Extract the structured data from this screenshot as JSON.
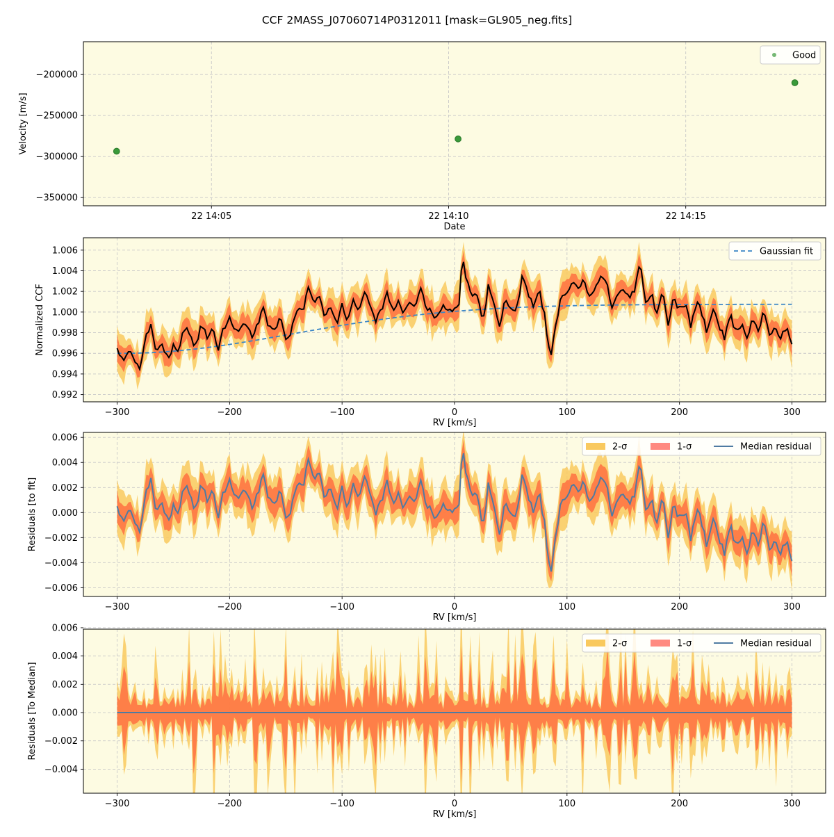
{
  "figure": {
    "title": "CCF 2MASS_J07060714P0312011 [mask=GL905_neg.fits]"
  },
  "colors": {
    "panel_bg": "#fdfbe2",
    "good_point": "#3a9a3a",
    "sigma2_fill": "#f9c95e",
    "sigma1_fill": "#ff6a3d",
    "ccf_line": "#000000",
    "gaussian_fit": "#3b86c6",
    "median_residual": "#4f7ba2"
  },
  "chart_data": [
    {
      "type": "scatter",
      "xlabel": "Date",
      "ylabel": "Velocity [m/s]",
      "x_ticks": [
        {
          "label": "22 14:05",
          "minutes": 5
        },
        {
          "label": "22 14:10",
          "minutes": 10
        },
        {
          "label": "22 14:15",
          "minutes": 15
        }
      ],
      "xlim_minutes": [
        2.3,
        17.95
      ],
      "ylim": [
        -360000,
        -160000
      ],
      "yticks": [
        -350000,
        -300000,
        -250000,
        -200000
      ],
      "ytick_labels": [
        "−350000",
        "−300000",
        "−250000",
        "−200000"
      ],
      "legend": {
        "position": "top-right",
        "entries": [
          "Good"
        ]
      },
      "series": [
        {
          "name": "Good",
          "points": [
            {
              "date": "22 14:03.0",
              "minutes": 3.0,
              "velocity": -293500
            },
            {
              "date": "22 14:10.2",
              "minutes": 10.2,
              "velocity": -278500
            },
            {
              "date": "22 14:17.3",
              "minutes": 17.3,
              "velocity": -210000
            }
          ]
        }
      ]
    },
    {
      "type": "line",
      "xlabel": "RV [km/s]",
      "ylabel": "Normalized CCF",
      "xlim": [
        -330,
        330
      ],
      "ylim": [
        0.9913,
        1.0072
      ],
      "xticks": [
        -300,
        -200,
        -100,
        0,
        100,
        200,
        300
      ],
      "xtick_labels": [
        "−300",
        "−200",
        "−100",
        "0",
        "100",
        "200",
        "300"
      ],
      "yticks": [
        0.992,
        0.994,
        0.996,
        0.998,
        1.0,
        1.002,
        1.004,
        1.006
      ],
      "ytick_labels": [
        "0.992",
        "0.994",
        "0.996",
        "0.998",
        "1.000",
        "1.002",
        "1.004",
        "1.006"
      ],
      "legend": {
        "position": "top-right",
        "entries": [
          "Gaussian fit"
        ]
      },
      "rv_step": 2,
      "series": [
        {
          "name": "Gaussian fit",
          "model": "baseline + amplitude·exp(−(rv−center)²/(2·sigma²))",
          "baseline": 1.00075,
          "amplitude": -0.00475,
          "center": -295,
          "sigma": 150
        },
        {
          "name": "CCF",
          "knots": [
            [
              -300,
              0.9963
            ],
            [
              -295,
              0.9952
            ],
            [
              -290,
              0.9961
            ],
            [
              -285,
              0.9957
            ],
            [
              -280,
              0.9945
            ],
            [
              -275,
              0.9975
            ],
            [
              -270,
              0.9988
            ],
            [
              -265,
              0.9962
            ],
            [
              -260,
              0.9968
            ],
            [
              -255,
              0.9952
            ],
            [
              -250,
              0.9968
            ],
            [
              -245,
              0.9965
            ],
            [
              -240,
              0.9983
            ],
            [
              -235,
              0.9978
            ],
            [
              -230,
              0.9966
            ],
            [
              -225,
              0.9988
            ],
            [
              -220,
              0.9975
            ],
            [
              -215,
              0.9982
            ],
            [
              -210,
              0.9963
            ],
            [
              -205,
              0.9985
            ],
            [
              -200,
              0.9995
            ],
            [
              -195,
              0.998
            ],
            [
              -190,
              0.9982
            ],
            [
              -185,
              0.999
            ],
            [
              -180,
              0.9975
            ],
            [
              -175,
              0.9985
            ],
            [
              -170,
              1.0005
            ],
            [
              -165,
              0.9988
            ],
            [
              -160,
              0.9982
            ],
            [
              -155,
              0.9997
            ],
            [
              -150,
              0.9975
            ],
            [
              -145,
              0.9985
            ],
            [
              -140,
              1.0003
            ],
            [
              -135,
              1.0
            ],
            [
              -130,
              1.0022
            ],
            [
              -125,
              1.001
            ],
            [
              -120,
              1.0018
            ],
            [
              -115,
              0.9995
            ],
            [
              -110,
              1.0005
            ],
            [
              -105,
              0.9985
            ],
            [
              -100,
              1.0008
            ],
            [
              -95,
              0.999
            ],
            [
              -90,
              1.0012
            ],
            [
              -85,
              1.0
            ],
            [
              -80,
              1.002
            ],
            [
              -75,
              1.0008
            ],
            [
              -70,
              0.999
            ],
            [
              -65,
              1.0003
            ],
            [
              -60,
              1.0018
            ],
            [
              -55,
              1.0
            ],
            [
              -50,
              1.001
            ],
            [
              -45,
              0.9998
            ],
            [
              -40,
              1.0012
            ],
            [
              -35,
              1.0004
            ],
            [
              -30,
              1.0025
            ],
            [
              -25,
              1.0005
            ],
            [
              -20,
              1.0
            ],
            [
              -15,
              0.9993
            ],
            [
              -10,
              1.001
            ],
            [
              -5,
              0.9998
            ],
            [
              0,
              1.0005
            ],
            [
              4,
              1.001
            ],
            [
              7,
              1.0055
            ],
            [
              10,
              1.003
            ],
            [
              15,
              1.002
            ],
            [
              20,
              1.0015
            ],
            [
              25,
              0.999
            ],
            [
              30,
              1.0025
            ],
            [
              35,
              1.0008
            ],
            [
              40,
              0.9985
            ],
            [
              45,
              1.0012
            ],
            [
              50,
              1.0005
            ],
            [
              55,
              1.0
            ],
            [
              60,
              1.0035
            ],
            [
              65,
              1.002
            ],
            [
              70,
              1.0005
            ],
            [
              75,
              1.002
            ],
            [
              80,
              1.0
            ],
            [
              83,
              0.997
            ],
            [
              86,
              0.9958
            ],
            [
              90,
              0.999
            ],
            [
              95,
              1.0015
            ],
            [
              100,
              1.002
            ],
            [
              105,
              1.0028
            ],
            [
              110,
              1.002
            ],
            [
              115,
              1.003
            ],
            [
              120,
              1.0015
            ],
            [
              125,
              1.0022
            ],
            [
              130,
              1.0035
            ],
            [
              135,
              1.0028
            ],
            [
              140,
              1.0005
            ],
            [
              145,
              1.0018
            ],
            [
              150,
              1.0022
            ],
            [
              155,
              1.0015
            ],
            [
              160,
              1.002
            ],
            [
              165,
              1.0045
            ],
            [
              170,
              1.001
            ],
            [
              175,
              1.0018
            ],
            [
              180,
              1.0
            ],
            [
              185,
              1.002
            ],
            [
              190,
              0.999
            ],
            [
              195,
              1.0015
            ],
            [
              200,
              1.0
            ],
            [
              205,
              1.001
            ],
            [
              210,
              0.9985
            ],
            [
              215,
              1.001
            ],
            [
              220,
              0.9998
            ],
            [
              225,
              0.998
            ],
            [
              230,
              1.0005
            ],
            [
              235,
              0.999
            ],
            [
              240,
              0.9975
            ],
            [
              245,
              0.9995
            ],
            [
              250,
              0.9982
            ],
            [
              255,
              0.999
            ],
            [
              260,
              0.9975
            ],
            [
              265,
              0.9995
            ],
            [
              270,
              0.998
            ],
            [
              275,
              0.9998
            ],
            [
              280,
              0.9978
            ],
            [
              285,
              0.9985
            ],
            [
              290,
              0.9972
            ],
            [
              295,
              0.9985
            ],
            [
              300,
              0.9973
            ]
          ]
        }
      ],
      "bands": {
        "sigma1_half_width": 0.0009,
        "sigma2_half_width": 0.0016
      }
    },
    {
      "type": "area",
      "xlabel": "RV [km/s]",
      "ylabel": "Residuals [to fit]",
      "xlim": [
        -330,
        330
      ],
      "ylim": [
        -0.0067,
        0.0064
      ],
      "xticks": [
        -300,
        -200,
        -100,
        0,
        100,
        200,
        300
      ],
      "xtick_labels": [
        "−300",
        "−200",
        "−100",
        "0",
        "100",
        "200",
        "300"
      ],
      "yticks": [
        -0.006,
        -0.004,
        -0.002,
        0.0,
        0.002,
        0.004,
        0.006
      ],
      "ytick_labels": [
        "−0.006",
        "−0.004",
        "−0.002",
        "0.000",
        "0.002",
        "0.004",
        "0.006"
      ],
      "legend": {
        "position": "top-right",
        "entries": [
          "2-σ",
          "1-σ",
          "Median residual"
        ]
      },
      "series": [
        {
          "name": "Median residual",
          "definition": "CCF − Gaussian fit"
        },
        {
          "name": "1-σ",
          "half_width": 0.0009
        },
        {
          "name": "2-σ",
          "half_width": 0.0016
        }
      ]
    },
    {
      "type": "area",
      "xlabel": "RV [km/s]",
      "ylabel": "Residuals [To Median]",
      "xlim": [
        -330,
        330
      ],
      "ylim": [
        -0.0057,
        0.0059
      ],
      "xticks": [
        -300,
        -200,
        -100,
        0,
        100,
        200,
        300
      ],
      "xtick_labels": [
        "−300",
        "−200",
        "−100",
        "0",
        "100",
        "200",
        "300"
      ],
      "yticks": [
        -0.004,
        -0.002,
        0.0,
        0.002,
        0.004,
        0.006
      ],
      "ytick_labels": [
        "−0.004",
        "−0.002",
        "0.000",
        "0.002",
        "0.004",
        "0.006"
      ],
      "legend": {
        "position": "top-right",
        "entries": [
          "2-σ",
          "1-σ",
          "Median residual"
        ]
      },
      "series": [
        {
          "name": "Median residual",
          "value": 0.0
        },
        {
          "name": "1-σ",
          "typical_half_width": 0.0011,
          "peak_half_width": 0.0035
        },
        {
          "name": "2-σ",
          "typical_half_width": 0.0018,
          "peak_half_width": 0.0055
        }
      ]
    }
  ]
}
